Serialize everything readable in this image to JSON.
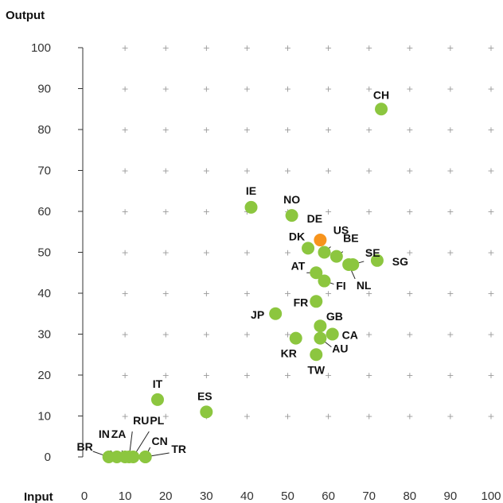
{
  "chart_data": {
    "type": "scatter",
    "xlabel": "Input",
    "ylabel": "Output",
    "xlim": [
      0,
      100
    ],
    "ylim": [
      0,
      100
    ],
    "x_ticks": [
      0,
      10,
      20,
      30,
      40,
      50,
      60,
      70,
      80,
      90,
      100
    ],
    "y_ticks": [
      0,
      10,
      20,
      30,
      40,
      50,
      60,
      70,
      80,
      90,
      100
    ],
    "grid": "plus-markers",
    "colors": {
      "default": "#8cc63f",
      "highlight": "#f7941d"
    },
    "points": [
      {
        "label": "BR",
        "x": 6,
        "y": 0
      },
      {
        "label": "IN",
        "x": 8,
        "y": 0
      },
      {
        "label": "ZA",
        "x": 10,
        "y": 0
      },
      {
        "label": "RU",
        "x": 11,
        "y": 0
      },
      {
        "label": "PL",
        "x": 12,
        "y": 0
      },
      {
        "label": "CN",
        "x": 15,
        "y": 0
      },
      {
        "label": "TR",
        "x": 15,
        "y": 0
      },
      {
        "label": "IT",
        "x": 18,
        "y": 14
      },
      {
        "label": "ES",
        "x": 30,
        "y": 11
      },
      {
        "label": "IE",
        "x": 41,
        "y": 61
      },
      {
        "label": "JP",
        "x": 47,
        "y": 35
      },
      {
        "label": "NO",
        "x": 51,
        "y": 59
      },
      {
        "label": "KR",
        "x": 52,
        "y": 29
      },
      {
        "label": "DK",
        "x": 55,
        "y": 51
      },
      {
        "label": "AT",
        "x": 57,
        "y": 45
      },
      {
        "label": "FR",
        "x": 57,
        "y": 38
      },
      {
        "label": "TW",
        "x": 57,
        "y": 25
      },
      {
        "label": "DE",
        "x": 58,
        "y": 53,
        "highlight": true
      },
      {
        "label": "GB",
        "x": 58,
        "y": 32
      },
      {
        "label": "AU",
        "x": 58,
        "y": 29
      },
      {
        "label": "US",
        "x": 59,
        "y": 50
      },
      {
        "label": "FI",
        "x": 59,
        "y": 43
      },
      {
        "label": "CA",
        "x": 61,
        "y": 30
      },
      {
        "label": "BE",
        "x": 62,
        "y": 49
      },
      {
        "label": "NL",
        "x": 65,
        "y": 47
      },
      {
        "label": "SE",
        "x": 66,
        "y": 47
      },
      {
        "label": "SG",
        "x": 72,
        "y": 48
      },
      {
        "label": "CH",
        "x": 73,
        "y": 85
      }
    ]
  }
}
